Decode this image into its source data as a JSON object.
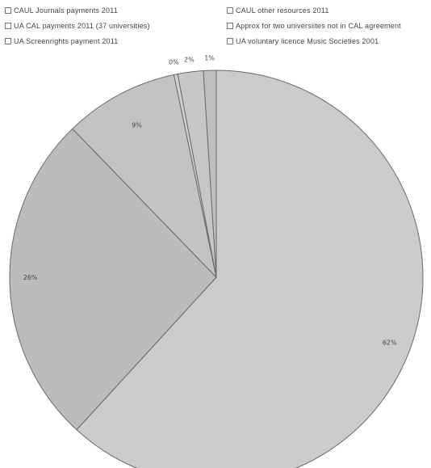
{
  "chart_data": {
    "type": "pie",
    "title": "",
    "legend_position": "top",
    "slices": [
      {
        "name": "CAUL Journals payments 2011",
        "value": 62,
        "label": "62%",
        "color": "#cdcdcd"
      },
      {
        "name": "UA CAL payments 2011 (37 universities)",
        "value": 26,
        "label": "26%",
        "color": "#bdbdbd"
      },
      {
        "name": "UA Screenrights payment 2011",
        "value": 9,
        "label": "9%",
        "color": "#c4c4c4"
      },
      {
        "name": "CAUL other resources 2011",
        "value": 0.3,
        "label": "0%",
        "color": "#d0d0d0"
      },
      {
        "name": "Approx for two universiites not in CAL agreement",
        "value": 2,
        "label": "2%",
        "color": "#c8c8c8"
      },
      {
        "name": "UA voluntary licence Music Societies 2001",
        "value": 1,
        "label": "1%",
        "color": "#bfbfbf"
      }
    ]
  }
}
